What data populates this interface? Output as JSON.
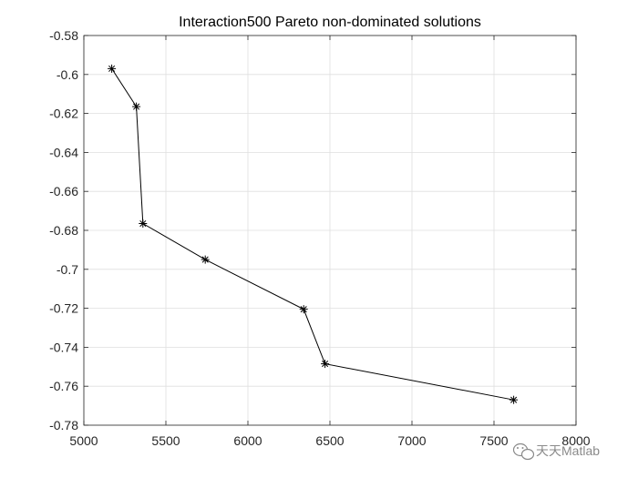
{
  "chart_data": {
    "type": "line",
    "title": "Interaction500 Pareto non-dominated solutions",
    "xlabel": "",
    "ylabel": "",
    "xlim": [
      5000,
      8000
    ],
    "ylim": [
      -0.78,
      -0.58
    ],
    "xticks": [
      5000,
      5500,
      6000,
      6500,
      7000,
      7500,
      8000
    ],
    "yticks": [
      -0.58,
      -0.6,
      -0.62,
      -0.64,
      -0.66,
      -0.68,
      -0.7,
      -0.72,
      -0.74,
      -0.76,
      -0.78
    ],
    "xtick_labels": [
      "5000",
      "5500",
      "6000",
      "6500",
      "7000",
      "7500",
      "8000"
    ],
    "ytick_labels": [
      "-0.58",
      "-0.6",
      "-0.62",
      "-0.64",
      "-0.66",
      "-0.68",
      "-0.7",
      "-0.72",
      "-0.74",
      "-0.76",
      "-0.78"
    ],
    "grid": true,
    "marker": "asterisk",
    "series": [
      {
        "x": [
          5170,
          5320,
          5360,
          5740,
          6340,
          6470,
          7620
        ],
        "y": [
          -0.597,
          -0.6165,
          -0.6765,
          -0.695,
          -0.7205,
          -0.7485,
          -0.767
        ]
      }
    ],
    "colors": {
      "line": "#000000",
      "grid": "#dfdfdf",
      "axes": "#262626",
      "background": "#ffffff"
    }
  },
  "watermark": {
    "text": "天天Matlab",
    "icon": "wechat-icon"
  }
}
